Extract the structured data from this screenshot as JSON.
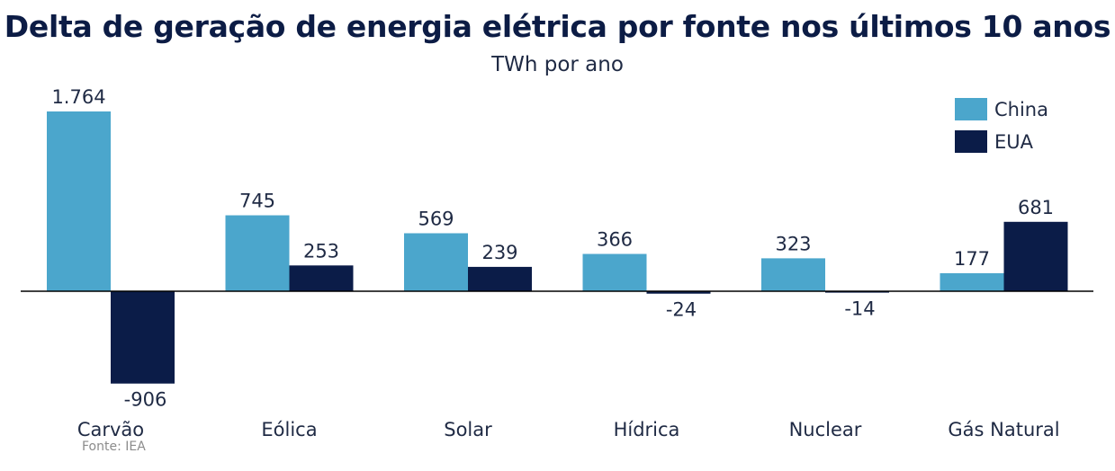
{
  "title": "Delta de geração de energia elétrica por fonte nos últimos 10 anos",
  "subtitle": "TWh por ano",
  "source": "Fonte: IEA",
  "colors": {
    "china": "#4ba6cc",
    "eua": "#0b1c48",
    "axis": "#000000"
  },
  "chart_data": {
    "type": "bar",
    "title": "Delta de geração de energia elétrica por fonte nos últimos 10 anos",
    "subtitle": "TWh por ano",
    "categories": [
      "Carvão",
      "Eólica",
      "Solar",
      "Hídrica",
      "Nuclear",
      "Gás Natural"
    ],
    "series": [
      {
        "name": "China",
        "values": [
          1764,
          745,
          569,
          366,
          323,
          177
        ],
        "labels": [
          "1.764",
          "745",
          "569",
          "366",
          "323",
          "177"
        ]
      },
      {
        "name": "EUA",
        "values": [
          -906,
          253,
          239,
          -24,
          -14,
          681
        ],
        "labels": [
          "-906",
          "253",
          "239",
          "-24",
          "-14",
          "681"
        ]
      }
    ],
    "ylim": [
      -906,
      1764
    ],
    "grid": false,
    "legend": "top-right"
  }
}
